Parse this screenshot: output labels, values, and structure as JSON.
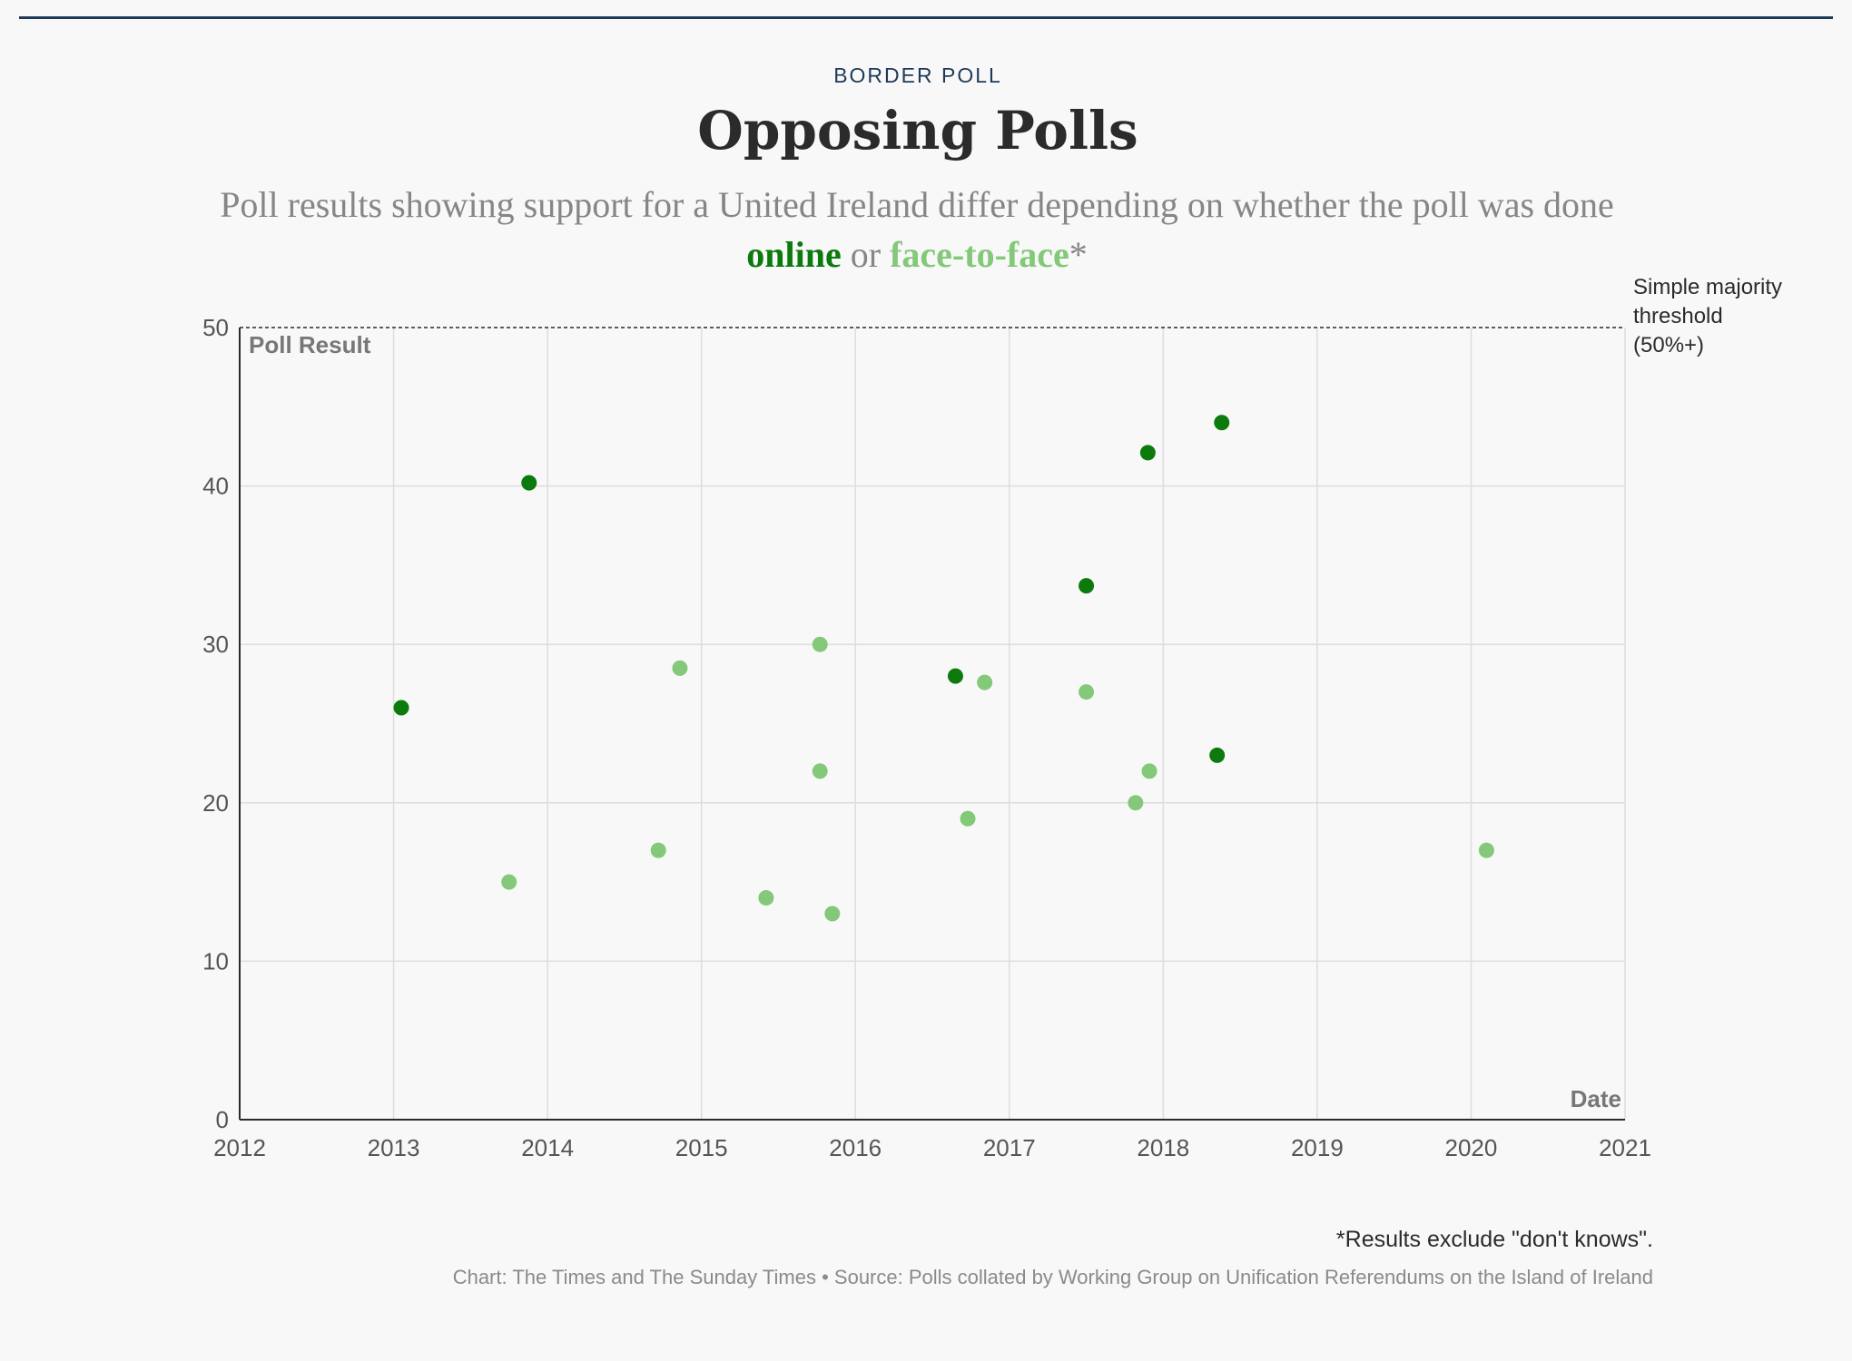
{
  "header": {
    "kicker": "BORDER POLL",
    "title": "Opposing Polls",
    "subtitle_pre": "Poll results showing support for a United Ireland differ depending on whether the poll was done",
    "subtitle_online": "online",
    "subtitle_or": " or ",
    "subtitle_f2f": "face-to-face",
    "subtitle_star": "*"
  },
  "colors": {
    "online": "#0c7a0c",
    "face_to_face": "#84c87a",
    "grid": "#dddddd",
    "axis": "#2b2b2b",
    "threshold": "#2b2b2b"
  },
  "chart_data": {
    "type": "scatter",
    "ylabel": "Poll Result",
    "xlabel": "Date",
    "xlim": [
      2012,
      2021
    ],
    "ylim": [
      0,
      50
    ],
    "x_ticks": [
      "2012",
      "2013",
      "2014",
      "2015",
      "2016",
      "2017",
      "2018",
      "2019",
      "2020",
      "2021"
    ],
    "y_ticks": [
      "0",
      "10",
      "20",
      "30",
      "40",
      "50"
    ],
    "grid": true,
    "threshold": {
      "value": 50,
      "label_lines": [
        "Simple majority",
        "threshold",
        "(50%+)"
      ]
    },
    "series": [
      {
        "name": "online",
        "points": [
          [
            2013.05,
            26
          ],
          [
            2013.88,
            40.2
          ],
          [
            2016.65,
            28
          ],
          [
            2017.5,
            33.7
          ],
          [
            2017.9,
            42.1
          ],
          [
            2018.35,
            23
          ],
          [
            2018.38,
            44
          ]
        ]
      },
      {
        "name": "face-to-face",
        "points": [
          [
            2013.75,
            15
          ],
          [
            2014.72,
            17
          ],
          [
            2014.86,
            28.5
          ],
          [
            2015.42,
            14
          ],
          [
            2015.77,
            30
          ],
          [
            2015.77,
            22
          ],
          [
            2015.85,
            13
          ],
          [
            2016.73,
            19
          ],
          [
            2016.84,
            27.6
          ],
          [
            2017.5,
            27
          ],
          [
            2017.82,
            20
          ],
          [
            2017.91,
            22
          ],
          [
            2020.1,
            17
          ]
        ]
      }
    ]
  },
  "footer": {
    "note": "*Results exclude \"don't knows\".",
    "credit": "Chart: The Times and The Sunday Times • Source: Polls collated by Working Group on Unification Referendums on the Island of Ireland"
  }
}
